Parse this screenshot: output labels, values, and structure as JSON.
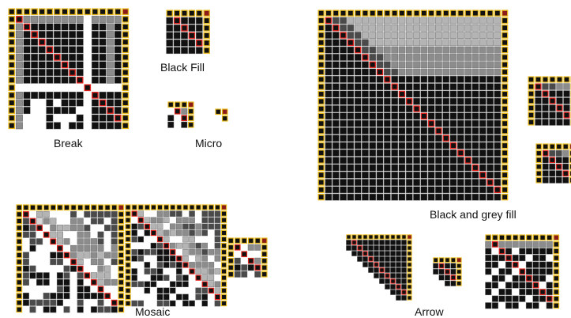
{
  "labels": {
    "break": "Break",
    "black_fill": "Black Fill",
    "micro": "Micro",
    "black_and_grey_fill": "Black and grey fill",
    "mosaic": "Mosaic",
    "arrow": "Arrow"
  },
  "colors": {
    "background": "#ffffff",
    "cell_black": "#111111",
    "cell_grid": "#666666",
    "border_cell_outline": "#e8b818",
    "border_cell_fill": "#111111",
    "diagonal_outline": "#e0201a",
    "corner_cell": "#8b1a1a",
    "grey_dark": "#4a4a4a",
    "grey_mid": "#8c8c8c",
    "grey_light": "#b4b4b4",
    "grey_pale": "#d8d8d8"
  },
  "matrix_patterns": [
    {
      "name": "break",
      "style": "break",
      "size": 16
    },
    {
      "name": "black-fill",
      "style": "black_fill",
      "size": 6
    },
    {
      "name": "micro-a",
      "style": "micro",
      "size": 4
    },
    {
      "name": "micro-b",
      "style": "micro",
      "size": 2
    },
    {
      "name": "black-and-grey-fill",
      "style": "black_grey",
      "size": 26
    },
    {
      "name": "black-and-grey-fill-small-a",
      "style": "black_grey",
      "size": 7
    },
    {
      "name": "black-and-grey-fill-small-b",
      "style": "black_grey",
      "size": 6
    },
    {
      "name": "mosaic-a",
      "style": "mosaic",
      "size": 16
    },
    {
      "name": "mosaic-b",
      "style": "mosaic",
      "size": 16
    },
    {
      "name": "mosaic-c",
      "style": "mosaic",
      "size": 6
    },
    {
      "name": "arrow-a",
      "style": "arrow",
      "size": 12
    },
    {
      "name": "arrow-b",
      "style": "arrow",
      "size": 5
    },
    {
      "name": "arrow-c",
      "style": "arrow_break",
      "size": 11
    }
  ]
}
